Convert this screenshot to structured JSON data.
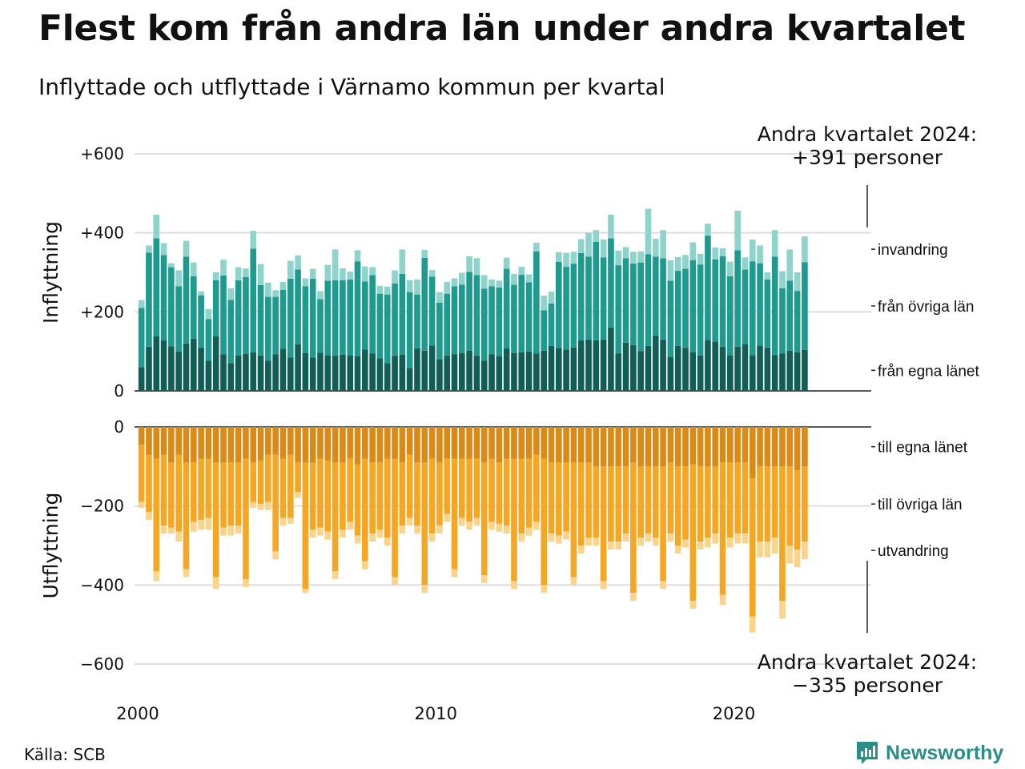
{
  "title": "Flest kom från andra län under andra kvartalet",
  "subtitle": "Inflyttade och utflyttade i Värnamo kommun per kvartal",
  "source": "Källa: SCB",
  "brand": "Newsworthy",
  "colors": {
    "in_same": "#115e57",
    "in_other": "#1f9a8f",
    "in_immig": "#8fd4cc",
    "out_same": "#d98a17",
    "out_other": "#f5a623",
    "out_emig": "#f9d48a",
    "grid": "#dddddd",
    "brand": "#2a8f86"
  },
  "chart_data": {
    "type": "bar",
    "stacked": true,
    "x_start": 2000,
    "x_step": 0.25,
    "x_ticks": [
      2000,
      2010,
      2020
    ],
    "grid": true,
    "panels": [
      {
        "name": "inflyttning",
        "ylabel": "Inflyttning",
        "ylim": [
          0,
          600
        ],
        "ticks": [
          {
            "value": 0,
            "label": "0"
          },
          {
            "value": 200,
            "label": "+200"
          },
          {
            "value": 400,
            "label": "+400"
          },
          {
            "value": 600,
            "label": "+600"
          }
        ],
        "annotation": {
          "line1": "Andra kvartalet 2024:",
          "line2": "+391 personer"
        },
        "series": [
          {
            "name": "från egna länet",
            "color_key": "in_same",
            "values": [
              60,
              112,
              138,
              128,
              113,
              100,
              120,
              132,
              110,
              76,
              138,
              93,
              70,
              90,
              94,
              98,
              90,
              76,
              93,
              107,
              84,
              118,
              96,
              84,
              97,
              90,
              89,
              92,
              90,
              88,
              105,
              95,
              82,
              70,
              89,
              92,
              58,
              108,
              102,
              115,
              80,
              89,
              93,
              96,
              102,
              89,
              76,
              93,
              88,
              108,
              96,
              98,
              100,
              95,
              102,
              114,
              109,
              105,
              110,
              128,
              130,
              128,
              130,
              160,
              95,
              122,
              116,
              101,
              114,
              140,
              130,
              86,
              114,
              109,
              98,
              90,
              129,
              125,
              112,
              90,
              112,
              119,
              90,
              115,
              110,
              91,
              95,
              102,
              98,
              104
            ]
          },
          {
            "name": "från övriga län",
            "color_key": "in_other",
            "values": [
              150,
              238,
              248,
              216,
              200,
              165,
              220,
              158,
              132,
              106,
              142,
              199,
              160,
              190,
              194,
              262,
              178,
              162,
              145,
              149,
              200,
              189,
              169,
              200,
              135,
              189,
              191,
              188,
              192,
              240,
              172,
              198,
              164,
              174,
              183,
              204,
              192,
              136,
              235,
              174,
              143,
              157,
              172,
              173,
              199,
              204,
              183,
              172,
              174,
              201,
              173,
              196,
              175,
              258,
              102,
              107,
              218,
              209,
              212,
              221,
              210,
              249,
              208,
              226,
              223,
              214,
              206,
              224,
              232,
              200,
              206,
              193,
              190,
              200,
              233,
              230,
              264,
              208,
              229,
              200,
              244,
              188,
              238,
              208,
              172,
              249,
              165,
              177,
              155,
              222
            ]
          },
          {
            "name": "invandring",
            "color_key": "in_immig",
            "values": [
              20,
              18,
              60,
              30,
              10,
              40,
              40,
              35,
              10,
              25,
              20,
              40,
              30,
              33,
              22,
              45,
              53,
              36,
              17,
              20,
              45,
              36,
              20,
              25,
              20,
              40,
              78,
              30,
              20,
              28,
              38,
              20,
              20,
              20,
              33,
              62,
              30,
              38,
              20,
              17,
              27,
              30,
              20,
              30,
              40,
              43,
              34,
              17,
              17,
              28,
              27,
              20,
              20,
              22,
              37,
              30,
              24,
              35,
              30,
              35,
              60,
              30,
              45,
              60,
              37,
              28,
              30,
              28,
              115,
              45,
              71,
              52,
              35,
              35,
              45,
              27,
              30,
              30,
              20,
              37,
              100,
              31,
              55,
              45,
              18,
              67,
              43,
              79,
              47,
              65
            ]
          }
        ]
      },
      {
        "name": "utflyttning",
        "ylabel": "Utflyttning",
        "ylim": [
          -600,
          0
        ],
        "ticks": [
          {
            "value": 0,
            "label": "0"
          },
          {
            "value": -200,
            "label": "−200"
          },
          {
            "value": -400,
            "label": "−400"
          },
          {
            "value": -600,
            "label": "−600"
          }
        ],
        "annotation": {
          "line1": "Andra kvartalet 2024:",
          "line2": "−335 personer"
        },
        "series": [
          {
            "name": "till egna länet",
            "color_key": "out_same",
            "values": [
              -45,
              -70,
              -80,
              -70,
              -90,
              -70,
              -90,
              -90,
              -80,
              -80,
              -90,
              -90,
              -90,
              -90,
              -80,
              -90,
              -85,
              -70,
              -70,
              -80,
              -70,
              -90,
              -90,
              -90,
              -80,
              -85,
              -90,
              -90,
              -80,
              -95,
              -80,
              -90,
              -90,
              -80,
              -80,
              -90,
              -70,
              -90,
              -90,
              -80,
              -90,
              -80,
              -80,
              -80,
              -80,
              -80,
              -90,
              -80,
              -90,
              -80,
              -80,
              -80,
              -80,
              -70,
              -80,
              -90,
              -90,
              -90,
              -90,
              -90,
              -90,
              -100,
              -100,
              -100,
              -100,
              -100,
              -90,
              -100,
              -100,
              -100,
              -100,
              -90,
              -100,
              -100,
              -95,
              -100,
              -100,
              -100,
              -90,
              -90,
              -90,
              -90,
              -130,
              -100,
              -100,
              -100,
              -100,
              -100,
              -110,
              -100
            ]
          },
          {
            "name": "till övriga län",
            "color_key": "out_other",
            "values": [
              -145,
              -145,
              -285,
              -180,
              -165,
              -195,
              -270,
              -150,
              -155,
              -150,
              -290,
              -165,
              -160,
              -160,
              -305,
              -100,
              -110,
              -120,
              -245,
              -150,
              -160,
              -75,
              -320,
              -170,
              -175,
              -180,
              -275,
              -170,
              -160,
              -180,
              -260,
              -180,
              -170,
              -200,
              -300,
              -160,
              -160,
              -160,
              -310,
              -190,
              -160,
              -140,
              -280,
              -150,
              -160,
              -150,
              -285,
              -160,
              -155,
              -170,
              -310,
              -190,
              -175,
              -170,
              -320,
              -180,
              -185,
              -175,
              -290,
              -210,
              -190,
              -180,
              -290,
              -190,
              -190,
              -170,
              -330,
              -180,
              -170,
              -180,
              -290,
              -180,
              -200,
              -185,
              -345,
              -190,
              -180,
              -170,
              -335,
              -190,
              -180,
              -180,
              -350,
              -190,
              -190,
              -180,
              -340,
              -200,
              -200,
              -190
            ]
          },
          {
            "name": "utvandring",
            "color_key": "out_emig",
            "values": [
              -15,
              -20,
              -25,
              -20,
              -15,
              -25,
              -20,
              -25,
              -25,
              -30,
              -30,
              -20,
              -25,
              -20,
              -20,
              -15,
              -15,
              -20,
              -20,
              -20,
              -15,
              -15,
              -10,
              -20,
              -20,
              -20,
              -20,
              -20,
              -20,
              -20,
              -20,
              -20,
              -20,
              -20,
              -20,
              -20,
              -20,
              -20,
              -20,
              -20,
              -20,
              -20,
              -20,
              -20,
              -20,
              -20,
              -20,
              -20,
              -20,
              -20,
              -20,
              -20,
              -20,
              -20,
              -20,
              -20,
              -20,
              -20,
              -20,
              -20,
              -20,
              -20,
              -20,
              -20,
              -20,
              -20,
              -20,
              -20,
              -20,
              -20,
              -20,
              -20,
              -20,
              -20,
              -20,
              -20,
              -25,
              -25,
              -25,
              -25,
              -25,
              -25,
              -40,
              -40,
              -40,
              -40,
              -45,
              -45,
              -45,
              -45
            ]
          }
        ]
      }
    ]
  }
}
